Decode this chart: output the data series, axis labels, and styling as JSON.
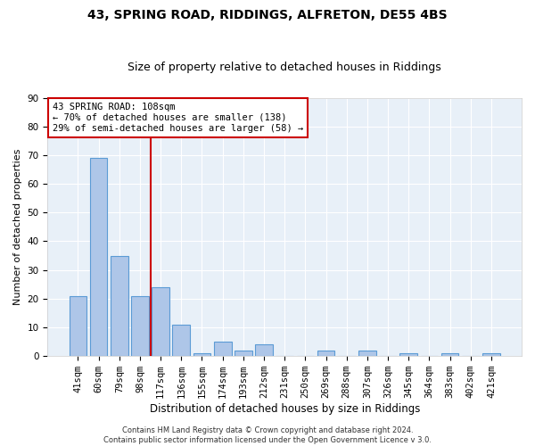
{
  "title1": "43, SPRING ROAD, RIDDINGS, ALFRETON, DE55 4BS",
  "title2": "Size of property relative to detached houses in Riddings",
  "xlabel": "Distribution of detached houses by size in Riddings",
  "ylabel": "Number of detached properties",
  "categories": [
    "41sqm",
    "60sqm",
    "79sqm",
    "98sqm",
    "117sqm",
    "136sqm",
    "155sqm",
    "174sqm",
    "193sqm",
    "212sqm",
    "231sqm",
    "250sqm",
    "269sqm",
    "288sqm",
    "307sqm",
    "326sqm",
    "345sqm",
    "364sqm",
    "383sqm",
    "402sqm",
    "421sqm"
  ],
  "values": [
    21,
    69,
    35,
    21,
    24,
    11,
    1,
    5,
    2,
    4,
    0,
    0,
    2,
    0,
    2,
    0,
    1,
    0,
    1,
    0,
    1
  ],
  "bar_color": "#aec6e8",
  "bar_edge_color": "#5b9bd5",
  "vline_x": 3.5,
  "vline_color": "#cc0000",
  "annotation_text": "43 SPRING ROAD: 108sqm\n← 70% of detached houses are smaller (138)\n29% of semi-detached houses are larger (58) →",
  "annotation_box_color": "#ffffff",
  "annotation_box_edge": "#cc0000",
  "ylim": [
    0,
    90
  ],
  "yticks": [
    0,
    10,
    20,
    30,
    40,
    50,
    60,
    70,
    80,
    90
  ],
  "footer": "Contains HM Land Registry data © Crown copyright and database right 2024.\nContains public sector information licensed under the Open Government Licence v 3.0.",
  "bg_color": "#e8f0f8",
  "fig_bg_color": "#ffffff",
  "title1_fontsize": 10,
  "title2_fontsize": 9,
  "ylabel_fontsize": 8,
  "xlabel_fontsize": 8.5,
  "tick_fontsize": 7.5,
  "footer_fontsize": 6,
  "ann_fontsize": 7.5
}
